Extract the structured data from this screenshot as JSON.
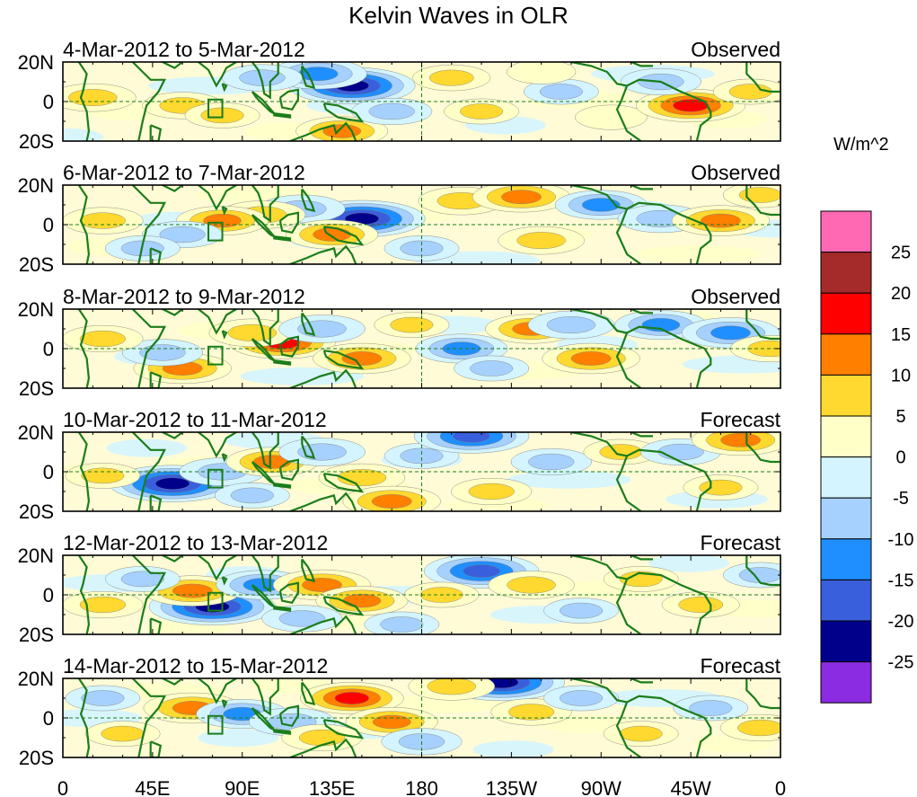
{
  "title": "Kelvin Waves in OLR",
  "units": "W/m^2",
  "chart_data": {
    "type": "heatmap",
    "title": "Kelvin Waves in OLR",
    "variable": "OLR anomaly (Kelvin wave filtered)",
    "units": "W/m^2",
    "x_ticks": [
      "0",
      "45E",
      "90E",
      "135E",
      "180",
      "135W",
      "90W",
      "45W",
      "0"
    ],
    "x_tick_lon": [
      0,
      45,
      90,
      135,
      180,
      225,
      270,
      315,
      360
    ],
    "y_ticks": [
      "20N",
      "0",
      "20S"
    ],
    "y_tick_lat": [
      20,
      0,
      -20
    ],
    "colorbar": {
      "levels": [
        -25,
        -20,
        -15,
        -10,
        -5,
        0,
        5,
        10,
        15,
        20,
        25
      ],
      "labels": [
        "25",
        "20",
        "15",
        "10",
        "5",
        "0",
        "-5",
        "-10",
        "-15",
        "-20",
        "-25"
      ],
      "colors": [
        "#ff69b4",
        "#a52a2a",
        "#ff0000",
        "#ff7f00",
        "#ffd92f",
        "#ffffc8",
        "#d4f4ff",
        "#a6d1ff",
        "#1f8fff",
        "#3a5fdc",
        "#00008b",
        "#8b2be2"
      ]
    },
    "panels": [
      {
        "date_range": "4-Mar-2012 to 5-Mar-2012",
        "kind": "Observed",
        "anomalies": [
          {
            "lon": 145,
            "lat": 8,
            "val": -24
          },
          {
            "lon": 128,
            "lat": 14,
            "val": -14
          },
          {
            "lon": 100,
            "lat": 12,
            "val": -8
          },
          {
            "lon": 60,
            "lat": -2,
            "val": 8
          },
          {
            "lon": 15,
            "lat": 2,
            "val": 10
          },
          {
            "lon": 80,
            "lat": -7,
            "val": 6
          },
          {
            "lon": 140,
            "lat": -15,
            "val": 12
          },
          {
            "lon": 165,
            "lat": -5,
            "val": -8
          },
          {
            "lon": 195,
            "lat": 12,
            "val": 7
          },
          {
            "lon": 210,
            "lat": -5,
            "val": 6
          },
          {
            "lon": 250,
            "lat": 5,
            "val": -6
          },
          {
            "lon": 275,
            "lat": -8,
            "val": 5
          },
          {
            "lon": 315,
            "lat": -2,
            "val": 18
          },
          {
            "lon": 300,
            "lat": 10,
            "val": -8
          },
          {
            "lon": 345,
            "lat": 5,
            "val": 6
          },
          {
            "lon": 240,
            "lat": 15,
            "val": 4
          }
        ]
      },
      {
        "date_range": "6-Mar-2012 to 7-Mar-2012",
        "kind": "Observed",
        "anomalies": [
          {
            "lon": 150,
            "lat": 3,
            "val": -24
          },
          {
            "lon": 120,
            "lat": 8,
            "val": -10
          },
          {
            "lon": 100,
            "lat": 5,
            "val": 10
          },
          {
            "lon": 80,
            "lat": 2,
            "val": 12
          },
          {
            "lon": 60,
            "lat": -5,
            "val": -8
          },
          {
            "lon": 20,
            "lat": 2,
            "val": 8
          },
          {
            "lon": 135,
            "lat": -5,
            "val": 12
          },
          {
            "lon": 200,
            "lat": 12,
            "val": 10
          },
          {
            "lon": 230,
            "lat": 14,
            "val": 14
          },
          {
            "lon": 240,
            "lat": -8,
            "val": 10
          },
          {
            "lon": 270,
            "lat": 10,
            "val": -12
          },
          {
            "lon": 300,
            "lat": 3,
            "val": -10
          },
          {
            "lon": 330,
            "lat": 2,
            "val": 14
          },
          {
            "lon": 180,
            "lat": -12,
            "val": -6
          },
          {
            "lon": 40,
            "lat": -12,
            "val": -6
          },
          {
            "lon": 350,
            "lat": 15,
            "val": 6
          }
        ]
      },
      {
        "date_range": "8-Mar-2012 to 9-Mar-2012",
        "kind": "Observed",
        "anomalies": [
          {
            "lon": 110,
            "lat": 3,
            "val": 17
          },
          {
            "lon": 95,
            "lat": 8,
            "val": 10
          },
          {
            "lon": 60,
            "lat": -10,
            "val": 14
          },
          {
            "lon": 50,
            "lat": -2,
            "val": -8
          },
          {
            "lon": 150,
            "lat": -5,
            "val": 14
          },
          {
            "lon": 130,
            "lat": 10,
            "val": -10
          },
          {
            "lon": 200,
            "lat": 0,
            "val": -12
          },
          {
            "lon": 235,
            "lat": 10,
            "val": 12
          },
          {
            "lon": 265,
            "lat": -5,
            "val": 14
          },
          {
            "lon": 255,
            "lat": 12,
            "val": -10
          },
          {
            "lon": 300,
            "lat": 12,
            "val": -12
          },
          {
            "lon": 335,
            "lat": 8,
            "val": -14
          },
          {
            "lon": 20,
            "lat": 5,
            "val": 8
          },
          {
            "lon": 175,
            "lat": 12,
            "val": 6
          },
          {
            "lon": 215,
            "lat": -10,
            "val": -6
          },
          {
            "lon": 355,
            "lat": 0,
            "val": 8
          }
        ]
      },
      {
        "date_range": "10-Mar-2012 to 11-Mar-2012",
        "kind": "Forecast",
        "anomalies": [
          {
            "lon": 55,
            "lat": -6,
            "val": -24
          },
          {
            "lon": 80,
            "lat": 0,
            "val": -10
          },
          {
            "lon": 105,
            "lat": 5,
            "val": 12
          },
          {
            "lon": 130,
            "lat": 10,
            "val": -10
          },
          {
            "lon": 150,
            "lat": -3,
            "val": 10
          },
          {
            "lon": 180,
            "lat": 8,
            "val": -6
          },
          {
            "lon": 205,
            "lat": 18,
            "val": -20
          },
          {
            "lon": 215,
            "lat": -10,
            "val": 8
          },
          {
            "lon": 245,
            "lat": 5,
            "val": -8
          },
          {
            "lon": 280,
            "lat": 10,
            "val": 6
          },
          {
            "lon": 310,
            "lat": 10,
            "val": -8
          },
          {
            "lon": 340,
            "lat": 16,
            "val": 14
          },
          {
            "lon": 330,
            "lat": -8,
            "val": 6
          },
          {
            "lon": 20,
            "lat": -2,
            "val": 6
          },
          {
            "lon": 165,
            "lat": -15,
            "val": 14
          },
          {
            "lon": 95,
            "lat": -12,
            "val": -6
          }
        ]
      },
      {
        "date_range": "12-Mar-2012 to 13-Mar-2012",
        "kind": "Forecast",
        "anomalies": [
          {
            "lon": 75,
            "lat": -6,
            "val": -24
          },
          {
            "lon": 65,
            "lat": 2,
            "val": 14
          },
          {
            "lon": 100,
            "lat": 5,
            "val": -12
          },
          {
            "lon": 130,
            "lat": 5,
            "val": 14
          },
          {
            "lon": 150,
            "lat": -3,
            "val": 12
          },
          {
            "lon": 120,
            "lat": -12,
            "val": -8
          },
          {
            "lon": 210,
            "lat": 12,
            "val": -20
          },
          {
            "lon": 190,
            "lat": 0,
            "val": 6
          },
          {
            "lon": 235,
            "lat": 5,
            "val": 10
          },
          {
            "lon": 260,
            "lat": -8,
            "val": -6
          },
          {
            "lon": 290,
            "lat": 8,
            "val": 6
          },
          {
            "lon": 320,
            "lat": -5,
            "val": 7
          },
          {
            "lon": 20,
            "lat": -5,
            "val": 8
          },
          {
            "lon": 40,
            "lat": 8,
            "val": -6
          },
          {
            "lon": 170,
            "lat": -15,
            "val": -6
          },
          {
            "lon": 350,
            "lat": 10,
            "val": -6
          }
        ]
      },
      {
        "date_range": "14-Mar-2012 to 15-Mar-2012",
        "kind": "Forecast",
        "anomalies": [
          {
            "lon": 65,
            "lat": 5,
            "val": 14
          },
          {
            "lon": 90,
            "lat": 2,
            "val": -12
          },
          {
            "lon": 115,
            "lat": -2,
            "val": -10
          },
          {
            "lon": 145,
            "lat": 10,
            "val": 16
          },
          {
            "lon": 165,
            "lat": -2,
            "val": 12
          },
          {
            "lon": 130,
            "lat": -10,
            "val": 8
          },
          {
            "lon": 220,
            "lat": 18,
            "val": -24
          },
          {
            "lon": 195,
            "lat": 16,
            "val": 10
          },
          {
            "lon": 235,
            "lat": 3,
            "val": 8
          },
          {
            "lon": 260,
            "lat": 10,
            "val": -6
          },
          {
            "lon": 290,
            "lat": -8,
            "val": 6
          },
          {
            "lon": 325,
            "lat": 5,
            "val": -6
          },
          {
            "lon": 30,
            "lat": -8,
            "val": 6
          },
          {
            "lon": 20,
            "lat": 10,
            "val": -6
          },
          {
            "lon": 180,
            "lat": -12,
            "val": -8
          },
          {
            "lon": 350,
            "lat": -5,
            "val": 8
          }
        ]
      }
    ]
  }
}
